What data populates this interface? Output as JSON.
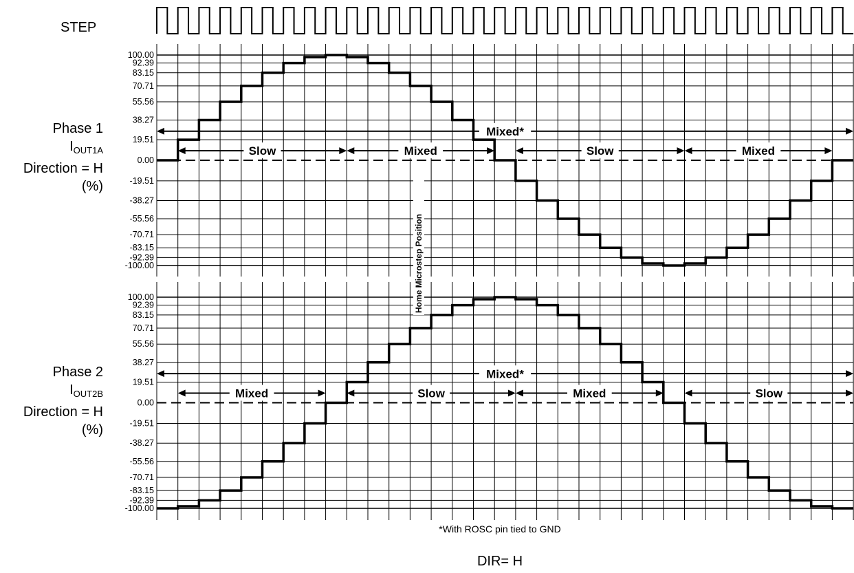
{
  "step_label": "STEP",
  "phase1": {
    "title": "Phase 1",
    "current_main": "I",
    "current_sub": "OUT1A",
    "direction": "Direction = H",
    "unit": "(%)"
  },
  "phase2": {
    "title": "Phase 2",
    "current_main": "I",
    "current_sub": "OUT2B",
    "direction": "Direction = H",
    "unit": "(%)"
  },
  "home_label": "Home Microstep Position",
  "footnote": "*With ROSC pin tied to GND",
  "dir_label": "DIR= H",
  "colors": {
    "line": "#000000",
    "background": "#ffffff"
  },
  "chart_data": [
    {
      "type": "line",
      "name": "phase1",
      "ylim": [
        -100,
        100
      ],
      "yticks": [
        "100.00",
        "92.39",
        "83.15",
        "70.71",
        "55.56",
        "38.27",
        "19.51",
        "0.00",
        "-19.51",
        "-38.27",
        "-55.56",
        "-70.71",
        "-83.15",
        "-92.39",
        "-100.00"
      ],
      "ytick_values": [
        100,
        92.39,
        83.15,
        70.71,
        55.56,
        38.27,
        19.51,
        0,
        -19.51,
        -38.27,
        -55.56,
        -70.71,
        -83.15,
        -92.39,
        -100
      ],
      "steps": [
        0,
        19.51,
        38.27,
        55.56,
        70.71,
        83.15,
        92.39,
        98.08,
        100,
        98.08,
        92.39,
        83.15,
        70.71,
        55.56,
        38.27,
        19.51,
        0,
        -19.51,
        -38.27,
        -55.56,
        -70.71,
        -83.15,
        -92.39,
        -98.08,
        -100,
        -98.08,
        -92.39,
        -83.15,
        -70.71,
        -55.56,
        -38.27,
        -19.51,
        0
      ],
      "decay_overall": "Mixed*",
      "decay_segments": [
        {
          "label": "Slow",
          "from_step": 1,
          "to_step": 9
        },
        {
          "label": "Mixed",
          "from_step": 9,
          "to_step": 16
        },
        {
          "label": "Slow",
          "from_step": 17,
          "to_step": 25
        },
        {
          "label": "Mixed",
          "from_step": 25,
          "to_step": 32
        }
      ]
    },
    {
      "type": "line",
      "name": "phase2",
      "ylim": [
        -100,
        100
      ],
      "yticks": [
        "100.00",
        "92.39",
        "83.15",
        "70.71",
        "55.56",
        "38.27",
        "19.51",
        "0.00",
        "-19.51",
        "-38.27",
        "-55.56",
        "-70.71",
        "-83.15",
        "-92.39",
        "-100.00"
      ],
      "ytick_values": [
        100,
        92.39,
        83.15,
        70.71,
        55.56,
        38.27,
        19.51,
        0,
        -19.51,
        -38.27,
        -55.56,
        -70.71,
        -83.15,
        -92.39,
        -100
      ],
      "steps": [
        -100,
        -98.08,
        -92.39,
        -83.15,
        -70.71,
        -55.56,
        -38.27,
        -19.51,
        0,
        19.51,
        38.27,
        55.56,
        70.71,
        83.15,
        92.39,
        98.08,
        100,
        98.08,
        92.39,
        83.15,
        70.71,
        55.56,
        38.27,
        19.51,
        0,
        -19.51,
        -38.27,
        -55.56,
        -70.71,
        -83.15,
        -92.39,
        -98.08,
        -100
      ],
      "decay_overall": "Mixed*",
      "decay_segments": [
        {
          "label": "Mixed",
          "from_step": 1,
          "to_step": 8
        },
        {
          "label": "Slow",
          "from_step": 9,
          "to_step": 17
        },
        {
          "label": "Mixed",
          "from_step": 17,
          "to_step": 24
        },
        {
          "label": "Slow",
          "from_step": 25,
          "to_step": 33
        }
      ]
    }
  ]
}
